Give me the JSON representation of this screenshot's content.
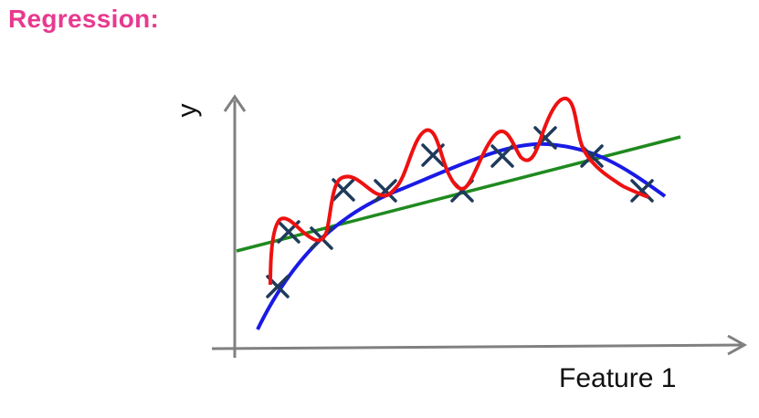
{
  "title": "Regression:",
  "axes": {
    "y_label": "y",
    "x_label": "Feature 1"
  },
  "colors": {
    "title": "#e8398f",
    "axis": "#808080",
    "markers": "#1f3a5a",
    "linear_fit": "#1f8a1f",
    "quadratic_fit": "#1a1ae6",
    "overfit": "#ee1111"
  },
  "icons": {
    "data_marker": "x-cross-marker"
  }
}
